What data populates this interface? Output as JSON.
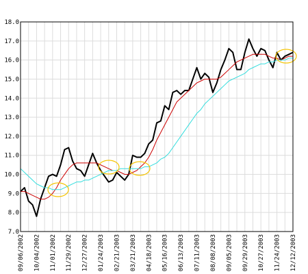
{
  "chart_data": {
    "type": "line",
    "categories": [
      "09/06/2002",
      null,
      null,
      null,
      "10/04/2002",
      null,
      null,
      null,
      "11/01/2002",
      null,
      null,
      null,
      "11/29/2002",
      null,
      null,
      null,
      "12/27/2002",
      null,
      null,
      null,
      "01/24/2003",
      null,
      null,
      null,
      "02/21/2003",
      null,
      null,
      null,
      "03/21/2003",
      null,
      null,
      null,
      "04/18/2003",
      null,
      null,
      null,
      "05/16/2003",
      null,
      null,
      null,
      "06/13/2003",
      null,
      null,
      null,
      "07/11/2003",
      null,
      null,
      null,
      "08/08/2003",
      null,
      null,
      null,
      "09/05/2003",
      null,
      null,
      null,
      "09/29/2003",
      null,
      null,
      null,
      "10/27/2003",
      null,
      null,
      null,
      "11/24/2003",
      null,
      null,
      null,
      "12/12/2003"
    ],
    "series": [
      {
        "color": "#000000",
        "values": [
          9.1,
          9.3,
          8.6,
          8.4,
          7.8,
          8.7,
          9.3,
          9.9,
          10.0,
          9.9,
          10.5,
          11.3,
          11.4,
          10.7,
          10.3,
          10.2,
          9.9,
          10.5,
          11.1,
          10.6,
          10.2,
          9.9,
          9.6,
          9.7,
          10.1,
          9.9,
          9.7,
          10.0,
          11.0,
          10.9,
          10.9,
          11.1,
          11.6,
          11.8,
          12.7,
          12.8,
          13.6,
          13.4,
          14.3,
          14.4,
          14.2,
          14.4,
          14.4,
          15.0,
          15.6,
          15.0,
          15.3,
          15.1,
          14.3,
          14.8,
          15.5,
          16.0,
          16.6,
          16.4,
          15.5,
          15.5,
          16.4,
          17.1,
          16.6,
          16.2,
          16.6,
          16.5,
          16.0,
          15.6,
          16.4,
          16.0,
          16.2,
          16.3,
          16.4
        ]
      },
      {
        "color": "#cc0000",
        "values": [
          9.1,
          9.1,
          9.0,
          8.9,
          8.8,
          8.7,
          8.7,
          8.8,
          9.0,
          9.3,
          9.7,
          10.0,
          10.3,
          10.5,
          10.6,
          10.6,
          10.6,
          10.6,
          10.6,
          10.6,
          10.5,
          10.4,
          10.3,
          10.2,
          10.2,
          10.1,
          10.0,
          10.0,
          10.1,
          10.2,
          10.4,
          10.6,
          10.9,
          11.3,
          11.8,
          12.2,
          12.6,
          13.0,
          13.4,
          13.8,
          14.0,
          14.2,
          14.4,
          14.6,
          14.8,
          14.9,
          15.0,
          15.0,
          15.0,
          15.0,
          15.1,
          15.3,
          15.5,
          15.7,
          15.9,
          16.0,
          16.1,
          16.2,
          16.3,
          16.3,
          16.3,
          16.3,
          16.2,
          16.1,
          16.1,
          16.0,
          16.1,
          16.2,
          16.2
        ]
      },
      {
        "color": "#33dddd",
        "values": [
          10.3,
          10.1,
          9.9,
          9.7,
          9.5,
          9.4,
          9.3,
          9.3,
          9.2,
          9.2,
          9.2,
          9.3,
          9.4,
          9.5,
          9.6,
          9.6,
          9.7,
          9.7,
          9.8,
          9.9,
          10.0,
          10.1,
          10.2,
          10.2,
          10.2,
          10.3,
          10.3,
          10.3,
          10.3,
          10.3,
          10.3,
          10.4,
          10.4,
          10.5,
          10.6,
          10.8,
          10.9,
          11.1,
          11.4,
          11.7,
          12.0,
          12.3,
          12.6,
          12.9,
          13.2,
          13.4,
          13.7,
          13.9,
          14.1,
          14.3,
          14.5,
          14.7,
          14.9,
          15.0,
          15.1,
          15.2,
          15.3,
          15.5,
          15.6,
          15.7,
          15.8,
          15.8,
          15.9,
          15.9,
          16.0,
          16.0,
          16.0,
          16.1,
          16.1
        ]
      }
    ],
    "ylim": [
      7,
      18
    ],
    "yticks": [
      {
        "value": 7,
        "label": "7.0"
      },
      {
        "value": 8,
        "label": "8.0"
      },
      {
        "value": 9,
        "label": "9.0"
      },
      {
        "value": 10,
        "label": "10.0"
      },
      {
        "value": 11,
        "label": "11.0"
      },
      {
        "value": 12,
        "label": "12.0"
      },
      {
        "value": 13,
        "label": "13.0"
      },
      {
        "value": 14,
        "label": "14.0"
      },
      {
        "value": 15,
        "label": "15.0"
      },
      {
        "value": 16,
        "label": "16.0"
      },
      {
        "value": 17,
        "label": "17.0"
      },
      {
        "value": 18,
        "label": "18.0"
      }
    ],
    "grid": true
  }
}
